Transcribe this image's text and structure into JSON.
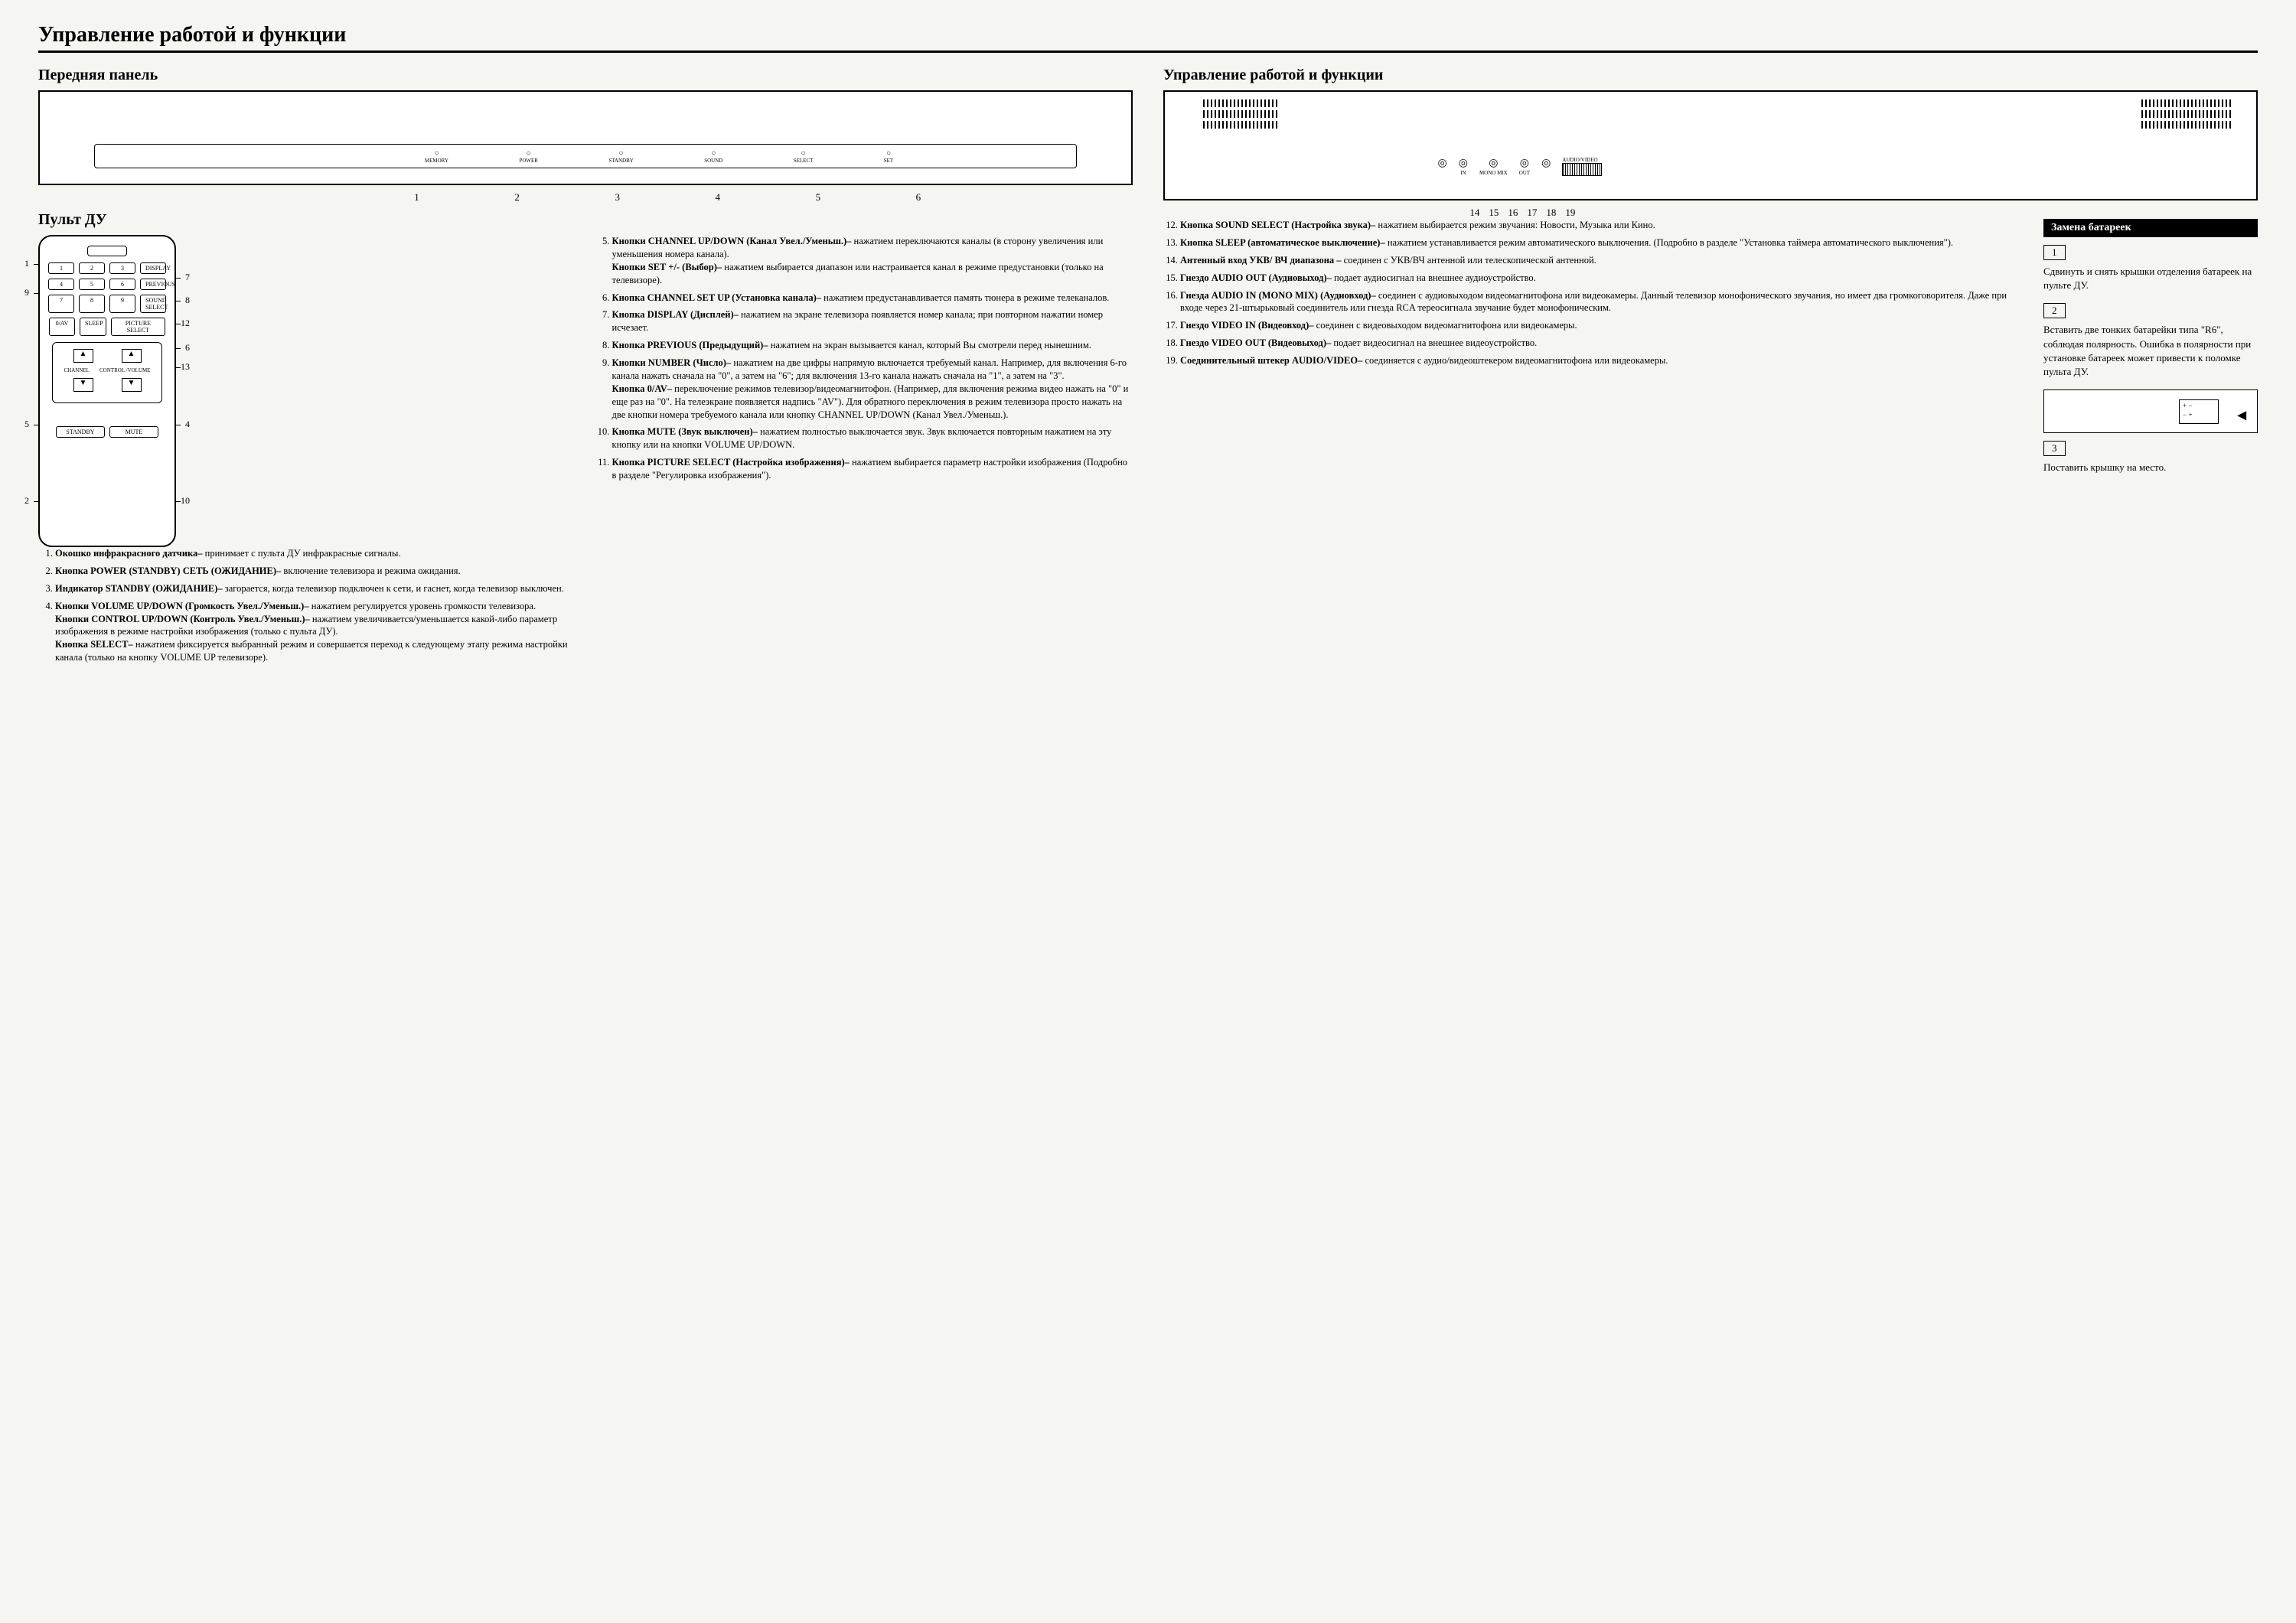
{
  "main_title": "Управление работой и функции",
  "front_panel_heading": "Передняя панель",
  "remote_heading": "Пульт ДУ",
  "rear_heading": "Управление работой и функции",
  "front_panel": {
    "buttons": [
      "MEMORY",
      "POWER",
      "STANDBY",
      "SOUND",
      "SELECT",
      "SET"
    ],
    "callouts": [
      "1",
      "2",
      "3",
      "4",
      "5",
      "6"
    ]
  },
  "rear_panel": {
    "labels": [
      "AUDIO VIDEO",
      "IN",
      "OUT",
      "MONO MIX",
      "AUDIO/VIDEO"
    ],
    "callouts": [
      "14",
      "15",
      "16",
      "17",
      "18",
      "19"
    ]
  },
  "remote": {
    "num_buttons": [
      "1",
      "2",
      "3",
      "4",
      "5",
      "6",
      "7",
      "8",
      "9",
      "0/AV"
    ],
    "display": "DISPLAY",
    "previous": "PREVIOUS",
    "sound_select": "SOUND SELECT",
    "picture_select": "PICTURE SELECT",
    "sleep": "SLEEP",
    "channel": "CHANNEL",
    "control_volume": "CONTROL /VOLUME",
    "standby": "STANDBY",
    "mute": "MUTE",
    "callouts_left": {
      "c9": "9",
      "c5": "5",
      "c2": "2",
      "c1": "1"
    },
    "callouts_right": {
      "c7": "7",
      "c8": "8",
      "c12": "12",
      "c6": "6",
      "c13": "13",
      "c4": "4",
      "c10": "10"
    }
  },
  "descriptions_left": [
    {
      "n": 1,
      "bold": "Окошко инфракрасного датчика–",
      "text": " принимает с пульта ДУ инфракрасные сигналы."
    },
    {
      "n": 2,
      "bold": "Кнопка POWER (STANDBY) СЕТЬ (ОЖИДАНИЕ)–",
      "text": " включение телевизора и режима ожидания."
    },
    {
      "n": 3,
      "bold": "Индикатор STANDBY (ОЖИДАНИЕ)–",
      "text": " загорается, когда телевизор подключен к сети, и гаснет, когда телевизор выключен."
    },
    {
      "n": 4,
      "bold": "Кнопки VOLUME UP/DOWN (Громкость Увел./Уменьш.)–",
      "text": " нажатием регулируется уровень громкости телевизора.",
      "bold2": "Кнопки CONTROL UP/DOWN (Контроль Увел./Уменьш.)–",
      "text2": " нажатием увеличивается/уменьшается какой-либо параметр изображения в режиме настройки изображения (только с пульта ДУ).",
      "bold3": "Кнопка SELECT–",
      "text3": " нажатием фиксируется выбранный режим и совершается переход к следующему этапу режима настройки канала (только на кнопку VOLUME UP телевизоре)."
    }
  ],
  "descriptions_mid": [
    {
      "n": 5,
      "bold": "Кнопки CHANNEL UP/DOWN (Канал Увел./Уменьш.)–",
      "text": " нажатием переключаются каналы (в сторону увеличения или уменьшения номера канала).",
      "bold2": "Кнопки SET +/- (Выбор)–",
      "text2": " нажатием выбирается диапазон или настраивается канал в режиме предустановки (только на телевизоре)."
    },
    {
      "n": 6,
      "bold": "Кнопка CHANNEL SET UP (Установка канала)–",
      "text": " нажатием предустанавливается память тюнера в режиме телеканалов."
    },
    {
      "n": 7,
      "bold": "Кнопка DISPLAY (Дисплей)–",
      "text": " нажатием на экране телевизора появляется номер канала; при повторном нажатии номер исчезает."
    },
    {
      "n": 8,
      "bold": "Кнопка PREVIOUS (Предыдущий)–",
      "text": " нажатием на экран вызывается канал, который Вы смотрели перед нынешним."
    },
    {
      "n": 9,
      "bold": "Кнопки NUMBER (Число)–",
      "text": " нажатием на две цифры напрямую включается требуемый канал. Например, для включения 6-го канала нажать сначала на \"0\", а затем на \"6\"; для включения 13-го канала нажать сначала на \"1\", а затем на \"3\".",
      "bold2": "Кнопка 0/AV–",
      "text2": " переключение режимов телевизор/видеомагнитофон. (Например, для включения режима видео нажать на \"0\" и еще раз на \"0\". На телеэкране появляется надпись \"AV\"). Для обратного переключения в режим телевизора просто нажать на две кнопки номера требуемого канала или кнопку CHANNEL UP/DOWN (Канал Увел./Уменьш.)."
    },
    {
      "n": 10,
      "bold": "Кнопка MUTE (Звук выключен)–",
      "text": " нажатием полностью выключается звук. Звук включается повторным нажатием на эту кнопку или на кнопки VOLUME UP/DOWN."
    },
    {
      "n": 11,
      "bold": "Кнопка PICTURE SELECT (Настройка изображения)–",
      "text": " нажатием выбирается параметр настройки изображения (Подробно в разделе \"Регулировка изображения\")."
    }
  ],
  "descriptions_right": [
    {
      "n": 12,
      "bold": "Кнопка SOUND SELECT (Настройка звука)–",
      "text": " нажатием выбирается режим звучания: Новости, Музыка или Кино."
    },
    {
      "n": 13,
      "bold": "Кнопка SLEEP (автоматическое выключение)–",
      "text": " нажатием устанавливается режим автоматического выключения. (Подробно в разделе \"Установка таймера автоматического выключения\")."
    },
    {
      "n": 14,
      "bold": "Антенный вход УКВ/ ВЧ диапазона –",
      "text": " соединен с УКВ/ВЧ антенной или телескопической антенной."
    },
    {
      "n": 15,
      "bold": "Гнездо AUDIO OUT (Аудиовыход)–",
      "text": " подает аудиосигнал на внешнее аудиоустройство."
    },
    {
      "n": 16,
      "bold": "Гнезда AUDIO IN (MONO MIX) (Аудиовход)–",
      "text": " соединен с аудиовыходом видеомагнитофона или видеокамеры. Данный телевизор монофонического звучания, но имеет два громкоговорителя. Даже при входе через 21-штырьковый соединитель или гнезда RCA тереосигнала звучание будет монофоническим."
    },
    {
      "n": 17,
      "bold": "Гнездо VIDEO IN (Видеовход)–",
      "text": " соединен с видеовыходом видеомагнитофона или видеокамеры."
    },
    {
      "n": 18,
      "bold": "Гнездо VIDEO OUT (Видеовыход)–",
      "text": " подает видеосигнал на внешнее видеоустройство."
    },
    {
      "n": 19,
      "bold": "Соединительный штекер AUDIO/VIDEO–",
      "text": " соединяется с аудио/видеоштекером видеомагнитофона или видеокамеры."
    }
  ],
  "battery": {
    "header": "Замена батареек",
    "step1_num": "1",
    "step1_text": "Сдвинуть и снять крышки отделения батареек на пульте ДУ.",
    "step2_num": "2",
    "step2_text": "Вставить две тонких батарейки типа \"R6\", соблюдая полярность. Ошибка в полярности при установке батареек может привести к поломке пульта ДУ.",
    "step3_num": "3",
    "step3_text": "Поставить крышку на место."
  }
}
